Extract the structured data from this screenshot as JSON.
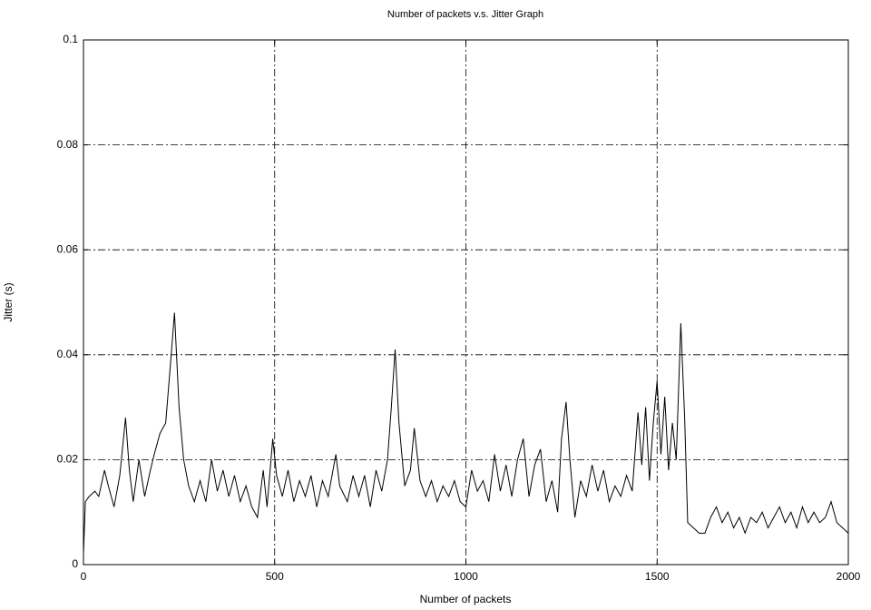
{
  "chart_data": {
    "type": "line",
    "title": "Number of packets v.s. Jitter Graph",
    "x_label": "Number of packets",
    "y_label": "Jitter (s)",
    "color": "#000000",
    "grid": true,
    "xlim": [
      0,
      2000
    ],
    "xticks": [
      0,
      500,
      1000,
      1500,
      2000
    ],
    "ylim": [
      0,
      0.1
    ],
    "yticks": [
      0,
      0.02,
      0.04,
      0.06,
      0.08,
      0.1
    ],
    "x": [
      0,
      5,
      15,
      30,
      40,
      55,
      65,
      80,
      95,
      110,
      120,
      130,
      145,
      160,
      175,
      185,
      200,
      215,
      225,
      238,
      250,
      262,
      275,
      290,
      305,
      320,
      335,
      350,
      365,
      380,
      395,
      410,
      425,
      440,
      455,
      470,
      480,
      495,
      505,
      520,
      535,
      550,
      565,
      580,
      595,
      610,
      625,
      640,
      660,
      670,
      690,
      705,
      720,
      735,
      750,
      765,
      780,
      795,
      805,
      815,
      825,
      840,
      855,
      865,
      880,
      895,
      910,
      925,
      940,
      955,
      970,
      985,
      1000,
      1015,
      1030,
      1045,
      1060,
      1075,
      1090,
      1105,
      1120,
      1135,
      1150,
      1165,
      1180,
      1195,
      1210,
      1225,
      1240,
      1250,
      1262,
      1272,
      1285,
      1300,
      1315,
      1330,
      1345,
      1360,
      1375,
      1390,
      1405,
      1420,
      1435,
      1450,
      1460,
      1470,
      1480,
      1490,
      1500,
      1510,
      1520,
      1530,
      1540,
      1550,
      1562,
      1572,
      1580,
      1595,
      1610,
      1625,
      1640,
      1655,
      1670,
      1685,
      1700,
      1715,
      1730,
      1745,
      1760,
      1775,
      1790,
      1805,
      1820,
      1835,
      1850,
      1865,
      1880,
      1895,
      1910,
      1925,
      1940,
      1955,
      1970,
      1985,
      2000
    ],
    "values": [
      0.002,
      0.012,
      0.013,
      0.014,
      0.013,
      0.018,
      0.015,
      0.011,
      0.017,
      0.028,
      0.018,
      0.012,
      0.02,
      0.013,
      0.018,
      0.021,
      0.025,
      0.027,
      0.036,
      0.048,
      0.03,
      0.02,
      0.015,
      0.012,
      0.016,
      0.012,
      0.02,
      0.014,
      0.018,
      0.013,
      0.017,
      0.012,
      0.015,
      0.011,
      0.009,
      0.018,
      0.011,
      0.024,
      0.017,
      0.013,
      0.018,
      0.012,
      0.016,
      0.013,
      0.017,
      0.011,
      0.016,
      0.013,
      0.021,
      0.015,
      0.012,
      0.017,
      0.013,
      0.017,
      0.011,
      0.018,
      0.014,
      0.02,
      0.03,
      0.041,
      0.027,
      0.015,
      0.018,
      0.026,
      0.016,
      0.013,
      0.016,
      0.012,
      0.015,
      0.013,
      0.016,
      0.012,
      0.011,
      0.018,
      0.014,
      0.016,
      0.012,
      0.021,
      0.014,
      0.019,
      0.013,
      0.02,
      0.024,
      0.013,
      0.019,
      0.022,
      0.012,
      0.016,
      0.01,
      0.024,
      0.031,
      0.02,
      0.009,
      0.016,
      0.013,
      0.019,
      0.014,
      0.018,
      0.012,
      0.015,
      0.013,
      0.017,
      0.014,
      0.029,
      0.019,
      0.03,
      0.016,
      0.027,
      0.035,
      0.021,
      0.032,
      0.018,
      0.027,
      0.02,
      0.046,
      0.028,
      0.008,
      0.007,
      0.006,
      0.006,
      0.009,
      0.011,
      0.008,
      0.01,
      0.007,
      0.009,
      0.006,
      0.009,
      0.008,
      0.01,
      0.007,
      0.009,
      0.011,
      0.008,
      0.01,
      0.007,
      0.011,
      0.008,
      0.01,
      0.008,
      0.009,
      0.012,
      0.008,
      0.007,
      0.006
    ]
  }
}
